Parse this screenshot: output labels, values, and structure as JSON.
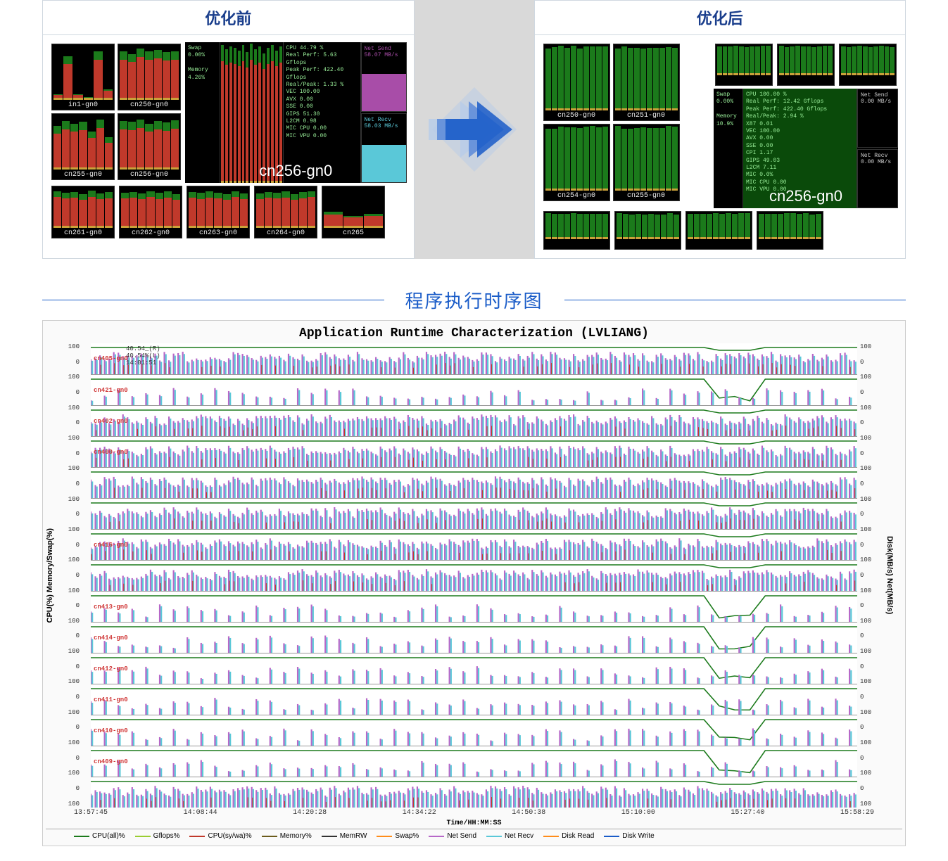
{
  "headers": {
    "before": "优化前",
    "after": "优化后"
  },
  "before": {
    "small": [
      {
        "name": "in1-gn0",
        "h": [
          0.1,
          0.8,
          0.1,
          0.05,
          0.9,
          0.2
        ]
      },
      {
        "name": "cn250-gn0",
        "h": [
          0.9,
          0.85,
          0.95,
          0.9,
          0.92,
          0.88,
          0.9
        ]
      },
      {
        "name": "cn255-gn0",
        "h": [
          0.8,
          0.9,
          0.85,
          0.88,
          0.7,
          0.92,
          0.6
        ]
      },
      {
        "name": "cn256-gn0",
        "h": [
          0.9,
          0.88,
          0.92,
          0.85,
          0.9,
          0.87,
          0.91
        ]
      },
      {
        "name": "cn261-gn0",
        "h": [
          0.92,
          0.88,
          0.9,
          0.85,
          0.93,
          0.86,
          0.89
        ]
      },
      {
        "name": "cn262-gn0",
        "h": [
          0.88,
          0.9,
          0.86,
          0.92,
          0.87,
          0.91,
          0.85
        ]
      },
      {
        "name": "cn263-gn0",
        "h": [
          0.9,
          0.87,
          0.91,
          0.88,
          0.85,
          0.92,
          0.86
        ]
      },
      {
        "name": "cn264-gn0",
        "h": [
          0.86,
          0.9,
          0.88,
          0.91,
          0.84,
          0.89,
          0.92
        ]
      },
      {
        "name": "cn265",
        "h": [
          0.4,
          0.3,
          0.35
        ]
      }
    ],
    "big": {
      "name": "cn256-gn0",
      "swap": "Swap",
      "swap_v": "0.00%",
      "memory": "Memory",
      "memory_v": "4.26%",
      "cpu": "CPU  44.79 %",
      "real_perf": "Real Perf:   5.63 Gflops",
      "peak_perf": "Peak Perf: 422.40 Gflops",
      "ratio": "Real/Peak:  1.33 %",
      "vec": "VEC 100.00",
      "avx": "AVX   0.00",
      "sse": "SSE   0.00",
      "gips": "GIPS 51.30",
      "l2cm": "L2CM  0.98",
      "mic_cpu": "MIC CPU  0.00",
      "mic_vpu": "MIC VPU  0.00",
      "net_send": "Net Send",
      "net_send_v": "58.07 MB/s",
      "net_recv": "Net Recv",
      "net_recv_v": "58.03 MB/s",
      "bars": [
        0.98,
        0.95,
        0.97,
        0.96,
        0.94,
        0.98,
        0.93,
        0.99,
        0.95,
        0.97,
        0.92,
        0.96,
        0.98,
        0.94,
        0.97
      ]
    },
    "colors": {
      "bar": "#c0392b",
      "green_top": "#1b7a1b",
      "baseline": "#caa23a"
    }
  },
  "after": {
    "small": [
      {
        "name": "cn250-gn0"
      },
      {
        "name": "cn251-gn0"
      },
      {
        "name": "cn254-gn0"
      },
      {
        "name": "cn255-gn0"
      }
    ],
    "big": {
      "name": "cn256-gn0",
      "swap": "Swap",
      "swap_v": "0.00%",
      "memory": "Memory",
      "memory_v": "10.9%",
      "cpu": "CPU 100.00 %",
      "real_perf": "Real Perf:  12.42 Gflops",
      "peak_perf": "Peak Perf: 422.40 Gflops",
      "ratio": "Real/Peak:  2.94 %",
      "x87": "X87   0.01",
      "vec": "VEC 100.00",
      "avx": "AVX   0.00",
      "sse": "SSE   0.00",
      "cpi": "CPI   1.17",
      "gips": "GIPS 49.03",
      "l2cm": "L2CM  7.11",
      "mic": "MIC   0.0%",
      "mic_cpu": "MIC CPU  0.00",
      "mic_vpu": "MIC VPU  0.00",
      "net_send": "Net Send",
      "net_send_v": "0.00 MB/s",
      "net_recv": "Net Recv",
      "net_recv_v": "0.00 MB/s"
    },
    "colors": {
      "bar": "#1b7a1b"
    }
  },
  "section_title": "程序执行时序图",
  "timeline": {
    "title": "Application Runtime Characterization (LVLIANG)",
    "yl": "CPU(%) Memory/Swap(%)",
    "yr": "Disk(MB/s) Net(MB/s)",
    "yticks": [
      "100",
      "0",
      "100",
      "0",
      "100",
      "0",
      "100",
      "0",
      "100",
      "0",
      "100",
      "0",
      "100",
      "0",
      "100",
      "0",
      "100",
      "0",
      "100",
      "0",
      "100",
      "0",
      "100",
      "0",
      "100",
      "0",
      "100",
      "0",
      "100",
      "0",
      "100"
    ],
    "meta": [
      "40.54_(R)",
      "40.54%(L)",
      "14:01:51"
    ],
    "tracks": [
      {
        "lbl": "cn405-gn0",
        "dense": true
      },
      {
        "lbl": "cn421-gn0",
        "dense": false
      },
      {
        "lbl": "cn402-gn0",
        "dense": true
      },
      {
        "lbl": "cn400-gn0",
        "dense": true
      },
      {
        "lbl": "",
        "dense": true
      },
      {
        "lbl": "",
        "dense": true
      },
      {
        "lbl": "cn416-gn0",
        "dense": true
      },
      {
        "lbl": "",
        "dense": true
      },
      {
        "lbl": "cn413-gn0",
        "dense": false
      },
      {
        "lbl": "cn414-gn0",
        "dense": false
      },
      {
        "lbl": "cn412-gn0",
        "dense": false
      },
      {
        "lbl": "cn411-gn0",
        "dense": false
      },
      {
        "lbl": "cn410-gn0",
        "dense": false
      },
      {
        "lbl": "cn409-gn0",
        "dense": false
      },
      {
        "lbl": "",
        "dense": true
      }
    ],
    "xticks": [
      "13:57:45",
      "14:08:44",
      "14:20:28",
      "14:34:22",
      "14:50:38",
      "15:10:00",
      "15:27:40",
      "15:58:29"
    ],
    "xunit": "Time/HH:MM:SS",
    "legend": [
      {
        "n": "CPU(all)%",
        "c": "#1b7a1b"
      },
      {
        "n": "Gflops%",
        "c": "#9acd32"
      },
      {
        "n": "CPU(sy/wa)%",
        "c": "#c0392b"
      },
      {
        "n": "Memory%",
        "c": "#6b5b1b"
      },
      {
        "n": "MemRW",
        "c": "#333333"
      },
      {
        "n": "Swap%",
        "c": "#ff8c1a"
      },
      {
        "n": "Net Send",
        "c": "#b768c8"
      },
      {
        "n": "Net Recv",
        "c": "#5ac8d8"
      },
      {
        "n": "Disk Read",
        "c": "#ff8c1a"
      },
      {
        "n": "Disk Write",
        "c": "#1a5cc8"
      }
    ],
    "colors": {
      "cpu_line": "#1b7a1b",
      "net_send": "#b768c8",
      "net_recv": "#5ac8d8",
      "cpu_red": "#c0392b"
    }
  },
  "arrow": {
    "fill": "#1a5cc8",
    "fill2": "#5a8ad8",
    "fill3": "#b8cce8"
  }
}
